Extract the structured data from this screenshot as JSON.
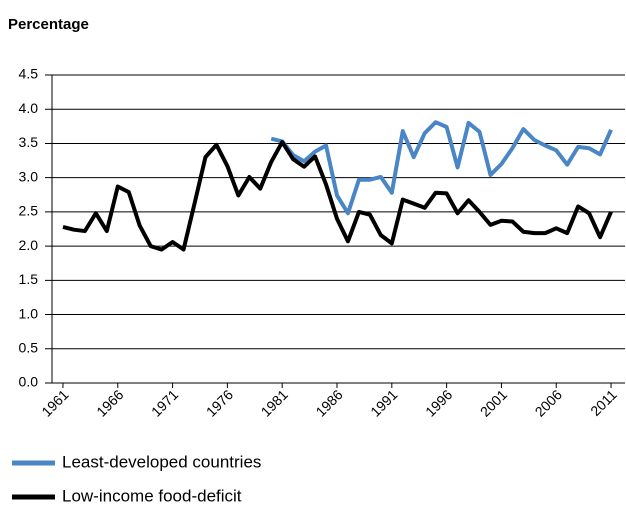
{
  "chart_data": {
    "type": "line",
    "y_label": "Percentage",
    "x": [
      1961,
      1962,
      1963,
      1964,
      1965,
      1966,
      1967,
      1968,
      1969,
      1970,
      1971,
      1972,
      1973,
      1974,
      1975,
      1976,
      1977,
      1978,
      1979,
      1980,
      1981,
      1982,
      1983,
      1984,
      1985,
      1986,
      1987,
      1988,
      1989,
      1990,
      1991,
      1992,
      1993,
      1994,
      1995,
      1996,
      1997,
      1998,
      1999,
      2000,
      2001,
      2002,
      2003,
      2004,
      2005,
      2006,
      2007,
      2008,
      2009,
      2010,
      2011
    ],
    "series": [
      {
        "name": "Least-developed countries",
        "color": "#4a86c5",
        "values": [
          null,
          null,
          null,
          null,
          null,
          null,
          null,
          null,
          null,
          null,
          null,
          null,
          null,
          null,
          null,
          null,
          null,
          null,
          null,
          3.57,
          3.53,
          3.33,
          3.24,
          3.38,
          3.47,
          2.74,
          2.48,
          2.97,
          2.97,
          3.01,
          2.78,
          3.68,
          3.3,
          3.65,
          3.81,
          3.74,
          3.15,
          3.8,
          3.67,
          3.04,
          3.2,
          3.43,
          3.71,
          3.55,
          3.47,
          3.4,
          3.19,
          3.45,
          3.43,
          3.34,
          3.7
        ]
      },
      {
        "name": "Low-income food-deficit",
        "color": "#000000",
        "values": [
          2.28,
          2.24,
          2.22,
          2.48,
          2.22,
          2.87,
          2.79,
          2.3,
          2.0,
          1.95,
          2.06,
          1.95,
          2.62,
          3.3,
          3.48,
          3.17,
          2.74,
          3.01,
          2.84,
          3.23,
          3.52,
          3.27,
          3.16,
          3.31,
          2.9,
          2.4,
          2.07,
          2.5,
          2.46,
          2.16,
          2.04,
          2.68,
          2.62,
          2.56,
          2.78,
          2.77,
          2.48,
          2.67,
          2.5,
          2.31,
          2.37,
          2.36,
          2.21,
          2.19,
          2.19,
          2.26,
          2.19,
          2.58,
          2.48,
          2.13,
          2.5
        ]
      }
    ],
    "xlim": [
      1960,
      2012
    ],
    "xticks": [
      1961,
      1966,
      1971,
      1976,
      1981,
      1986,
      1991,
      1996,
      2001,
      2006,
      2011
    ],
    "ylim": [
      0,
      4.5
    ],
    "yticks": [
      {
        "value": 0,
        "label": "0.0"
      },
      0.5,
      {
        "value": 1,
        "label": "1.0"
      },
      1.5,
      {
        "value": 2,
        "label": "2.0"
      },
      2.5,
      {
        "value": 3,
        "label": "3.0"
      },
      3.5,
      {
        "value": 4,
        "label": "4.0"
      },
      4.5
    ],
    "grid": true,
    "legend": "bottom"
  }
}
